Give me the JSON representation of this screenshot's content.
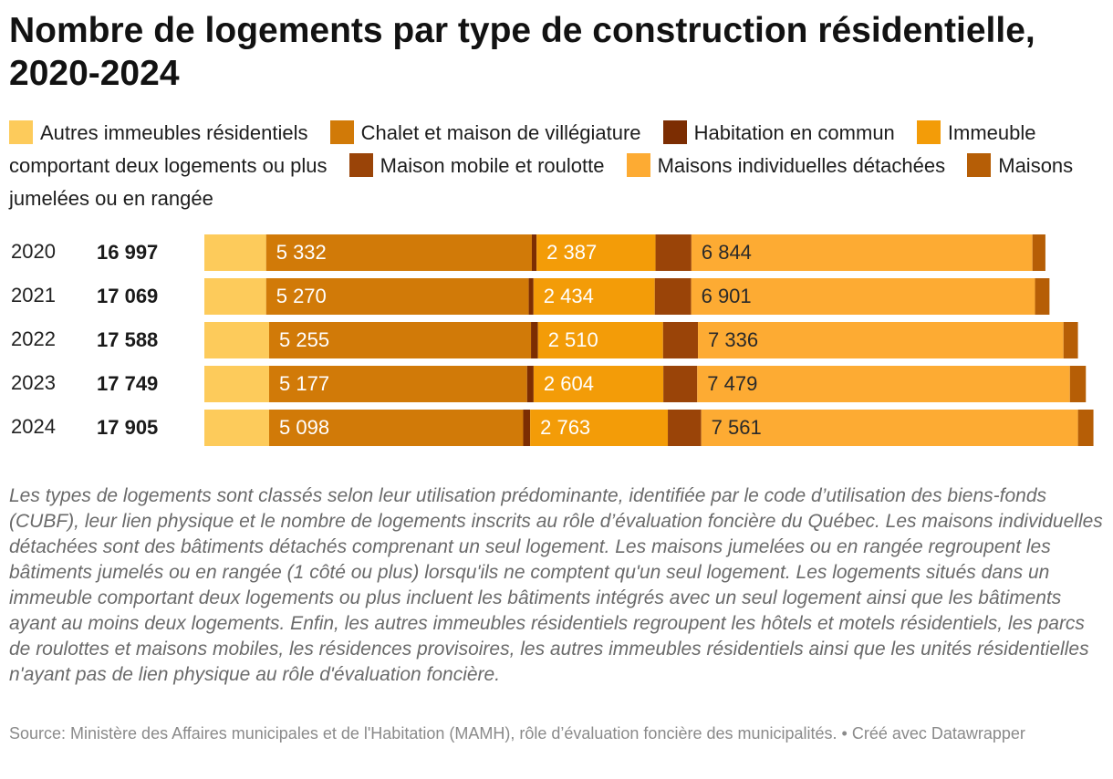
{
  "title": "Nombre de logements par type de construction résidentielle, 2020-2024",
  "notes": "Les types de logements sont classés selon leur utilisation prédominante, identifiée par le code d’utilisation des biens-fonds (CUBF), leur lien physique et le nombre de logements inscrits au rôle d’évaluation foncière du Québec. Les maisons individuelles détachées sont des bâtiments détachés comprenant un seul logement. Les maisons jumelées ou en rangée regroupent les bâtiments jumelés ou en rangée (1 côté ou plus) lorsqu'ils ne comptent qu'un seul logement. Les logements situés dans un immeuble comportant deux logements ou plus incluent les bâtiments intégrés avec un seul logement ainsi que les bâtiments ayant au moins deux logements. Enfin, les autres immeubles résidentiels regroupent les hôtels et motels résidentiels, les parcs de roulottes et maisons mobiles, les résidences provisoires, les autres immeubles résidentiels ainsi que les unités résidentielles n'ayant pas de lien physique au rôle d'évaluation foncière.",
  "source": "Source: Ministère des Affaires municipales et de l'Habitation (MAMH), rôle d’évaluation foncière des municipalités. • Créé avec Datawrapper",
  "chart_data": {
    "type": "bar",
    "orientation": "horizontal",
    "stacked": true,
    "legend_position": "top",
    "categories": [
      "2020",
      "2021",
      "2022",
      "2023",
      "2024"
    ],
    "totals": [
      "16 997",
      "17 069",
      "17 588",
      "17 749",
      "17 905"
    ],
    "total_values": [
      16997,
      17069,
      17588,
      17749,
      17905
    ],
    "series": [
      {
        "name": "Autres immeubles résidentiels",
        "color": "#fdcb5b",
        "values": [
          1240,
          1240,
          1300,
          1300,
          1300
        ],
        "labels": [
          "",
          "",
          "",
          "",
          ""
        ]
      },
      {
        "name": "Chalet et maison de villégiature",
        "color": "#d17a08",
        "values": [
          5332,
          5270,
          5255,
          5177,
          5098
        ],
        "labels": [
          "5 332",
          "5 270",
          "5 255",
          "5 177",
          "5 098"
        ]
      },
      {
        "name": "Habitation en commun",
        "color": "#7c2d02",
        "values": [
          95,
          95,
          140,
          130,
          140
        ],
        "labels": [
          "",
          "",
          "",
          "",
          ""
        ]
      },
      {
        "name": "Immeuble comportant deux logements ou plus",
        "color": "#f39c08",
        "values": [
          2387,
          2434,
          2510,
          2604,
          2763
        ],
        "labels": [
          "2 387",
          "2 434",
          "2 510",
          "2 604",
          "2 763"
        ]
      },
      {
        "name": "Maison mobile et roulotte",
        "color": "#9a4408",
        "values": [
          720,
          730,
          700,
          680,
          670
        ],
        "labels": [
          "",
          "",
          "",
          "",
          ""
        ]
      },
      {
        "name": "Maisons individuelles détachées",
        "color": "#fdab33",
        "values": [
          6844,
          6901,
          7336,
          7479,
          7561
        ],
        "labels": [
          "6 844",
          "6 901",
          "7 336",
          "7 479",
          "7 561"
        ]
      },
      {
        "name": "Maisons jumelées ou en rangée",
        "color": "#b65e06",
        "values": [
          260,
          290,
          290,
          320,
          310
        ],
        "labels": [
          "",
          "",
          "",
          "",
          ""
        ]
      }
    ],
    "label_colors": {
      "light": "#ffffff",
      "dark": "#2a2a2a"
    }
  }
}
